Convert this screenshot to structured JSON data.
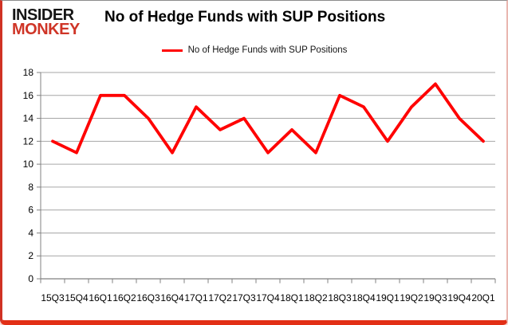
{
  "logo": {
    "line1": "INSIDER",
    "line2": "MONKEY"
  },
  "header": {
    "title": "No of Hedge Funds with SUP Positions"
  },
  "legend": {
    "label": "No of Hedge Funds with SUP Positions"
  },
  "chart_data": {
    "type": "line",
    "title": "No of Hedge Funds with SUP Positions",
    "categories": [
      "15Q3",
      "15Q4",
      "16Q1",
      "16Q2",
      "16Q3",
      "16Q4",
      "17Q1",
      "17Q2",
      "17Q3",
      "17Q4",
      "18Q1",
      "18Q2",
      "18Q3",
      "18Q4",
      "19Q1",
      "19Q2",
      "19Q3",
      "19Q4",
      "20Q1"
    ],
    "series": [
      {
        "name": "No of Hedge Funds with SUP Positions",
        "color": "#ff0000",
        "values": [
          12,
          11,
          16,
          16,
          14,
          11,
          15,
          13,
          14,
          11,
          13,
          11,
          16,
          15,
          12,
          15,
          17,
          14,
          12
        ]
      }
    ],
    "xlabel": "",
    "ylabel": "",
    "ylim": [
      0,
      18
    ],
    "ytick_step": 2,
    "grid": true,
    "legend_position": "top-center",
    "colors": {
      "gridline": "#a6a6a6",
      "axis": "#808080",
      "tick_label": "#000000"
    }
  }
}
